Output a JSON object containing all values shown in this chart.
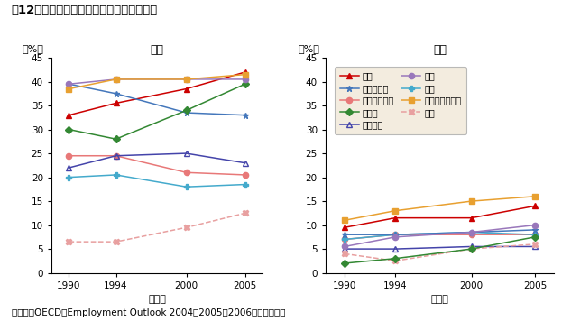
{
  "title": "第12図　パートタイム労働者の比率の推移",
  "footnote": "（備考）OECD「Employment Outlook 2004，2005，2006」より作成。",
  "years": [
    1990,
    1994,
    2000,
    2005
  ],
  "female_label": "女性",
  "male_label": "男性",
  "ylabel": "（%）",
  "xlabel": "（年）",
  "ylim": [
    0,
    45
  ],
  "yticks": [
    0,
    5,
    10,
    15,
    20,
    25,
    30,
    35,
    40,
    45
  ],
  "xticks": [
    1990,
    1994,
    2000,
    2005
  ],
  "series": [
    {
      "label": "日本",
      "color": "#cc0000",
      "marker": "^",
      "linestyle": "-",
      "fillstyle": "full",
      "female": [
        33.0,
        35.5,
        38.5,
        42.0
      ],
      "male": [
        9.5,
        11.5,
        11.5,
        14.0
      ]
    },
    {
      "label": "スウェーデン",
      "color": "#e87878",
      "marker": "o",
      "linestyle": "-",
      "fillstyle": "full",
      "female": [
        24.5,
        24.5,
        21.0,
        20.5
      ],
      "male": [
        7.0,
        8.0,
        8.0,
        8.0
      ]
    },
    {
      "label": "フランス",
      "color": "#4444aa",
      "marker": "^",
      "linestyle": "-",
      "fillstyle": "none",
      "female": [
        22.0,
        24.5,
        25.0,
        23.0
      ],
      "male": [
        5.0,
        5.0,
        5.5,
        5.5
      ]
    },
    {
      "label": "米国",
      "color": "#44aacc",
      "marker": "P",
      "linestyle": "-",
      "fillstyle": "full",
      "female": [
        20.0,
        20.5,
        18.0,
        18.5
      ],
      "male": [
        7.0,
        8.0,
        8.5,
        8.0
      ]
    },
    {
      "label": "韓国",
      "color": "#e8a0a0",
      "marker": "X",
      "linestyle": "--",
      "fillstyle": "full",
      "female": [
        6.5,
        6.5,
        9.5,
        12.5
      ],
      "male": [
        4.0,
        2.5,
        5.0,
        6.0
      ]
    },
    {
      "label": "ノルウェー",
      "color": "#4477bb",
      "marker": "*",
      "linestyle": "-",
      "fillstyle": "full",
      "female": [
        39.5,
        37.5,
        33.5,
        33.0
      ],
      "male": [
        8.0,
        8.0,
        8.5,
        9.0
      ]
    },
    {
      "label": "ドイツ",
      "color": "#338833",
      "marker": "D",
      "linestyle": "-",
      "fillstyle": "full",
      "female": [
        30.0,
        28.0,
        34.0,
        39.5
      ],
      "male": [
        2.0,
        3.0,
        5.0,
        7.5
      ]
    },
    {
      "label": "英国",
      "color": "#9977bb",
      "marker": "o",
      "linestyle": "-",
      "fillstyle": "full",
      "female": [
        39.5,
        40.5,
        40.5,
        40.5
      ],
      "male": [
        5.5,
        7.5,
        8.5,
        10.0
      ]
    },
    {
      "label": "オーストラリア",
      "color": "#e8a030",
      "marker": "s",
      "linestyle": "-",
      "fillstyle": "full",
      "female": [
        38.5,
        40.5,
        40.5,
        41.5
      ],
      "male": [
        11.0,
        13.0,
        15.0,
        16.0
      ]
    }
  ],
  "legend_bg": "#f0e8d8",
  "legend_order": [
    0,
    5,
    1,
    6,
    2,
    7,
    3,
    8,
    4
  ]
}
